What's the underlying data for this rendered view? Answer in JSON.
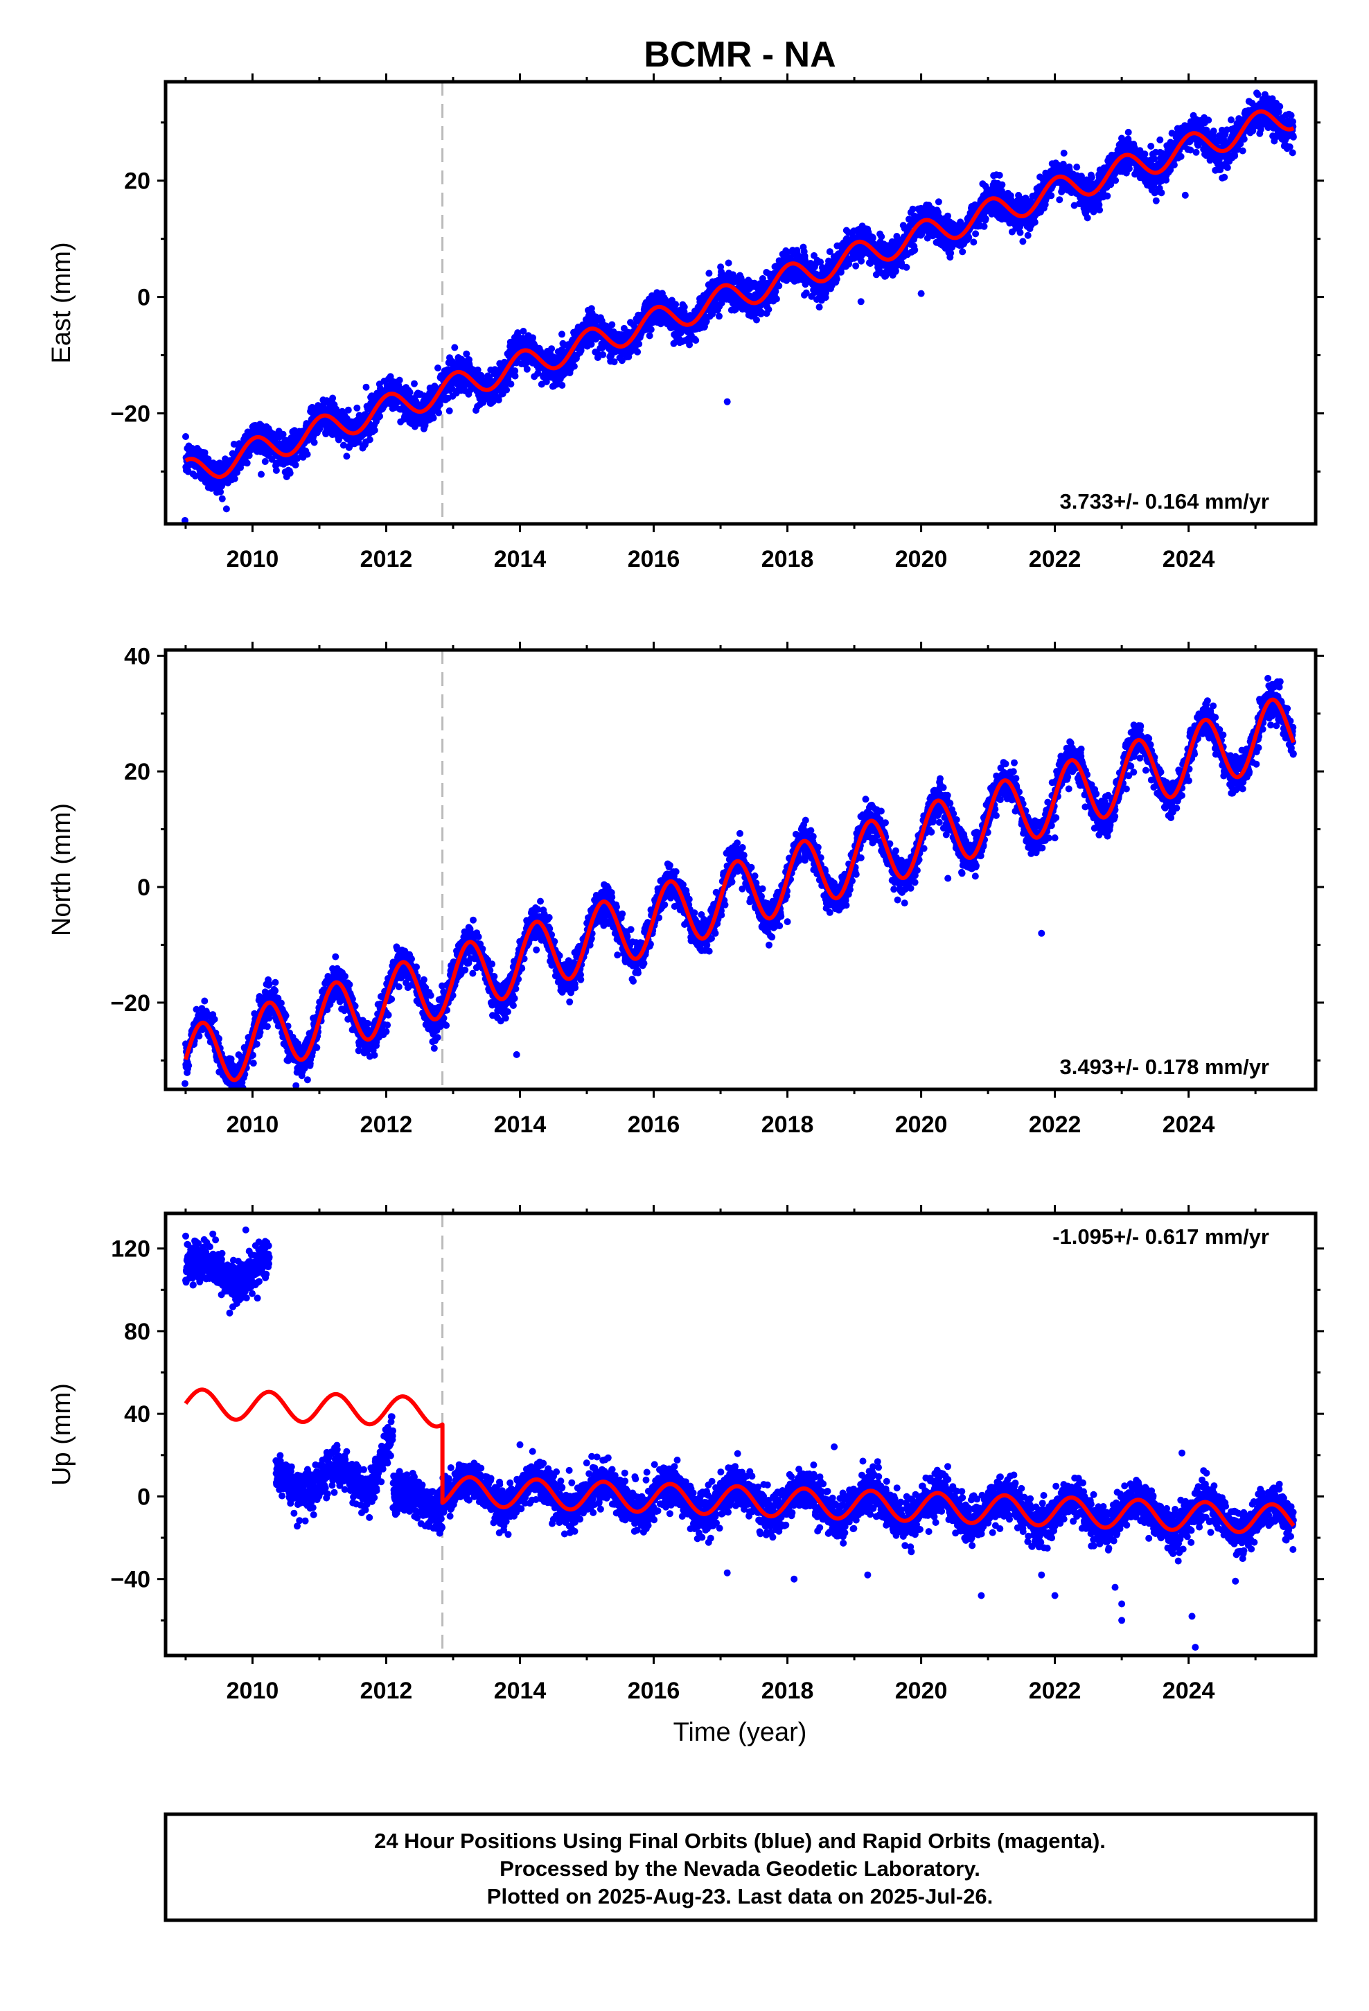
{
  "title": "BCMR - NA",
  "xlabel": "Time (year)",
  "footer": {
    "line1": "24 Hour Positions Using Final Orbits (blue) and Rapid Orbits (magenta).",
    "line2": "Processed by the Nevada Geodetic Laboratory.",
    "line3": "Plotted on 2025-Aug-23. Last data on 2025-Jul-26."
  },
  "colors": {
    "final_orbits": "#0000ff",
    "model": "#ff0000",
    "offset_line": "#bbbbbb"
  },
  "chart_data": [
    {
      "type": "scatter",
      "panel": "east",
      "ylabel": "East (mm)",
      "rate_label": "3.733+/- 0.164 mm/yr",
      "xlim": [
        2008.7,
        2025.9
      ],
      "ylim": [
        -39,
        37
      ],
      "yticks": [
        -20,
        0,
        20
      ],
      "xticks": [
        2010,
        2012,
        2014,
        2016,
        2018,
        2020,
        2022,
        2024
      ],
      "offset_epoch": 2012.84,
      "data_start": 2009.0,
      "data_end": 2025.57,
      "model": {
        "ref_year": 2017.0,
        "offset": -0.6,
        "rate": 3.733,
        "annual_amp": 2.4,
        "annual_phase": 1.3,
        "jump": 0,
        "jump_epoch": 2012.84
      },
      "scatter_sd": 1.5,
      "gaps": [],
      "segments": [],
      "outliers": [
        [
          2008.99,
          -38.4
        ],
        [
          2017.1,
          -18.0
        ],
        [
          2016.3,
          -8.0
        ],
        [
          2020.0,
          0.6
        ],
        [
          2019.1,
          -0.8
        ],
        [
          2023.95,
          17.5
        ],
        [
          2013.4,
          -18.5
        ],
        [
          2011.7,
          -15.5
        ],
        [
          2014.6,
          -12.5
        ]
      ],
      "legend": "none"
    },
    {
      "type": "scatter",
      "panel": "north",
      "ylabel": "North (mm)",
      "rate_label": "3.493+/- 0.178 mm/yr",
      "xlim": [
        2008.7,
        2025.9
      ],
      "ylim": [
        -35,
        41
      ],
      "yticks": [
        -20,
        0,
        20,
        40
      ],
      "xticks": [
        2010,
        2012,
        2014,
        2016,
        2018,
        2020,
        2022,
        2024
      ],
      "offset_epoch": 2012.84,
      "data_start": 2009.0,
      "data_end": 2025.57,
      "model": {
        "ref_year": 2017.0,
        "offset": -2.2,
        "rate": 3.493,
        "annual_amp": 5.8,
        "annual_phase": 0.05,
        "jump": 0,
        "jump_epoch": 2012.84
      },
      "scatter_sd": 1.5,
      "gaps": [],
      "segments": [],
      "outliers": [
        [
          2013.95,
          -29.0
        ],
        [
          2013.9,
          -20.5
        ],
        [
          2008.99,
          -34.0
        ],
        [
          2016.7,
          -9.0
        ],
        [
          2018.0,
          -6.0
        ],
        [
          2021.8,
          -8.0
        ],
        [
          2012.0,
          -25.0
        ],
        [
          2022.0,
          8.5
        ],
        [
          2020.4,
          1.5
        ]
      ],
      "legend": "none"
    },
    {
      "type": "scatter",
      "panel": "up",
      "ylabel": "Up (mm)",
      "rate_label": "-1.095+/- 0.617 mm/yr",
      "xlim": [
        2008.7,
        2025.9
      ],
      "ylim": [
        -77,
        137
      ],
      "yticks": [
        -40,
        0,
        40,
        80,
        120
      ],
      "xticks": [
        2010,
        2012,
        2014,
        2016,
        2018,
        2020,
        2022,
        2024
      ],
      "offset_epoch": 2012.84,
      "data_start": 2009.0,
      "data_end": 2025.57,
      "model": {
        "ref_year": 2017.0,
        "offset": -1.8,
        "rate": -1.095,
        "annual_amp": 7.0,
        "annual_phase": 0.0,
        "jump": 38,
        "jump_epoch": 2012.84
      },
      "scatter_sd": 5.0,
      "gaps": [
        [
          2010.25,
          2010.35
        ]
      ],
      "segments": [
        {
          "start": 2009.0,
          "end": 2010.25,
          "level": 109,
          "annual_amp": 6.0,
          "rate": 0,
          "sd": 5
        },
        {
          "start": 2010.35,
          "end": 2012.1,
          "level": 8,
          "annual_amp": 6.0,
          "rate": 0,
          "sd": 5,
          "ramp_end": 2011.7,
          "ramp_to": 28
        },
        {
          "start": 2012.1,
          "end": 2012.84,
          "level": -2,
          "annual_amp": 5.0,
          "rate": 0,
          "sd": 5
        }
      ],
      "outliers": [
        [
          2023.0,
          -60.0
        ],
        [
          2024.05,
          -58.0
        ],
        [
          2024.1,
          -73.0
        ],
        [
          2020.9,
          -48.0
        ],
        [
          2022.0,
          -48.0
        ],
        [
          2023.0,
          -52.0
        ],
        [
          2018.1,
          -40.0
        ],
        [
          2017.1,
          -37.0
        ],
        [
          2019.2,
          -38.0
        ],
        [
          2022.9,
          -44.0
        ],
        [
          2024.7,
          -41.0
        ],
        [
          2021.8,
          -38.0
        ],
        [
          2009.0,
          126.0
        ],
        [
          2009.9,
          129.0
        ],
        [
          2014.0,
          25.0
        ],
        [
          2018.7,
          24.0
        ],
        [
          2023.9,
          21.0
        ]
      ],
      "legend": "none"
    }
  ]
}
